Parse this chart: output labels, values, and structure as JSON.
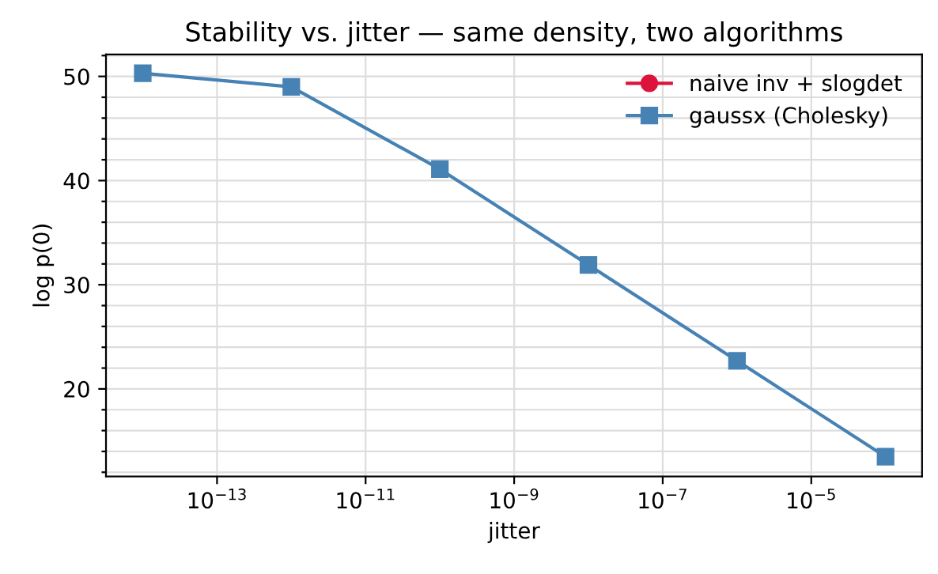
{
  "chart_data": {
    "type": "line",
    "title": "Stability vs. jitter — same density, two algorithms",
    "xlabel": "jitter",
    "ylabel": "log p(0)",
    "log": "x",
    "x": [
      1e-14,
      1e-12,
      1e-10,
      1e-08,
      1e-06,
      0.0001
    ],
    "series": [
      {
        "name": "naive inv + slogdet",
        "color": "#dc143c",
        "marker": "circle",
        "values": [
          null,
          null,
          null,
          null,
          null,
          null
        ]
      },
      {
        "name": "gaussx (Cholesky)",
        "color": "#4682b4",
        "marker": "square",
        "values": [
          50.3,
          49.0,
          41.1,
          31.9,
          22.7,
          13.5
        ]
      }
    ],
    "xlim": [
      3.2e-15,
      0.00031
    ],
    "xticks": [
      {
        "value": 1e-13,
        "label": "10$^{−13}$"
      },
      {
        "value": 1e-11,
        "label": "10$^{−11}$"
      },
      {
        "value": 1e-09,
        "label": "10$^{−9}$"
      },
      {
        "value": 1e-07,
        "label": "10$^{−7}$"
      },
      {
        "value": 1e-05,
        "label": "10$^{−5}$"
      }
    ],
    "ylim": [
      11.6,
      52.1
    ],
    "yticks": [
      {
        "value": 12,
        "label": null
      },
      {
        "value": 14,
        "label": null
      },
      {
        "value": 16,
        "label": null
      },
      {
        "value": 18,
        "label": null
      },
      20,
      {
        "value": 22,
        "label": null
      },
      {
        "value": 24,
        "label": null
      },
      {
        "value": 26,
        "label": null
      },
      {
        "value": 28,
        "label": null
      },
      30,
      {
        "value": 32,
        "label": null
      },
      {
        "value": 34,
        "label": null
      },
      {
        "value": 36,
        "label": null
      },
      {
        "value": 38,
        "label": null
      },
      40,
      {
        "value": 42,
        "label": null
      },
      {
        "value": 44,
        "label": null
      },
      {
        "value": 46,
        "label": null
      },
      {
        "value": 48,
        "label": null
      },
      50,
      {
        "value": 52,
        "label": null
      }
    ],
    "grid": true,
    "legend": "top right",
    "line_style": "solid"
  }
}
